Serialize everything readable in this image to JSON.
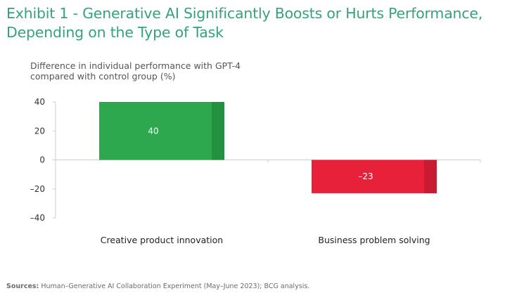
{
  "title": "Exhibit 1 - Generative AI Significantly Boosts or Hurts Performance, Depending on the Type of Task",
  "subtitle": "Difference in individual performance with GPT-4 compared with control group (%)",
  "source_label": "Sources:",
  "source_text": "Human–Generative AI Collaboration Experiment (May–June 2023); BCG analysis.",
  "colors": {
    "title": "#35a37a",
    "positive": "#2ea84f",
    "positive_shade": "#23913f",
    "negative": "#e8213a",
    "negative_shade": "#c81a30",
    "axis": "#cccccc"
  },
  "chart_data": {
    "type": "bar",
    "title": "",
    "xlabel": "",
    "ylabel": "Difference in individual performance with GPT-4 compared with control group (%)",
    "ylim": [
      -40,
      40
    ],
    "yticks": [
      40,
      20,
      0,
      -20,
      -40
    ],
    "ytick_labels": [
      "40",
      "20",
      "0",
      "–20",
      "–40"
    ],
    "categories": [
      "Creative product innovation",
      "Business problem solving"
    ],
    "values": [
      40,
      -23
    ],
    "data_labels": [
      "40",
      "–23"
    ],
    "grid": false,
    "legend": "none"
  }
}
